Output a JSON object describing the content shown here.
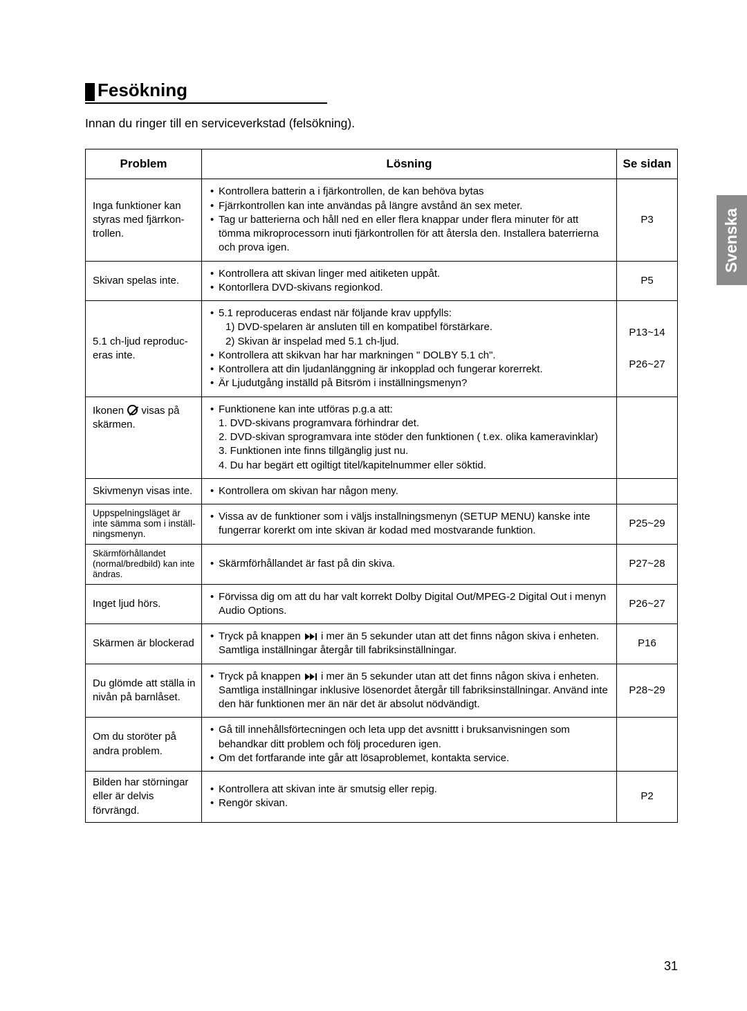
{
  "language_tab": "Svenska",
  "page_number": "31",
  "section_title": "Fesökning",
  "intro": "Innan du ringer till en serviceverkstad (felsökning).",
  "headers": {
    "problem": "Problem",
    "solution": "Lösning",
    "page": "Se sidan"
  },
  "rows": [
    {
      "problem": "Inga funktioner kan styras med fjärrkon-trollen.",
      "solutions": [
        "Kontrollera batterin a i fjärkontrollen, de kan behöva bytas",
        "Fjärrkontrollen kan inte användas på längre avstånd än sex meter.",
        "Tag ur batterierna och håll ned en eller flera knappar under flera minuter för att tömma mikroprocessorn inuti fjärkontrollen för att återsla den. Installera baterrierna och prova igen."
      ],
      "page": "P3"
    },
    {
      "problem": "Skivan spelas inte.",
      "solutions": [
        "Kontrollera att skivan linger med aitiketen uppåt.",
        "Kontorllera DVD-skivans regionkod."
      ],
      "page": "P5"
    },
    {
      "problem": "5.1 ch-ljud reproduc-eras inte.",
      "solutions": [
        "5.1 reproduceras endast när följande krav uppfylls:",
        "Kontrollera att skikvan har har markningen \" DOLBY 5.1 ch\".",
        "Kontrollera att din ljudanlänggning är inkopplad och fungerar korerrekt.",
        "Är Ljudutgång inställd på Bitsröm i inställningsmenyn?"
      ],
      "sub_after_first": [
        "1) DVD-spelaren är ansluten till en kompatibel förstärkare.",
        "2) Skivan är inspelad med 5.1 ch-ljud."
      ],
      "page_stack": [
        "P13~14",
        "P26~27"
      ]
    },
    {
      "problem": "Ikonen ⦸ visas på skärmen.",
      "solutions_raw": "Funktionene kan inte utföras p.g.a att:",
      "numbered": [
        "1. DVD-skivans programvara förhindrar det.",
        "2. DVD-skivan sprogramvara inte stöder den funktionen ( t.ex. olika kameravinklar)",
        "3. Funktionen inte finns tillgänglig just nu.",
        "4. Du har begärt ett ogiltigt titel/kapitelnummer eller söktid."
      ],
      "page": ""
    },
    {
      "problem": "Skivmenyn visas inte.",
      "solutions": [
        "Kontrollera om skivan har någon meny."
      ],
      "page": ""
    },
    {
      "problem": "Uppspelningsläget är inte sämma som i inställ-ningsmenyn.",
      "solutions": [
        "Vissa av de funktioner som i väljs installningsmenyn (SETUP MENU) kanske inte fungerrar korerkt om inte skivan är kodad med mostvarande funktion."
      ],
      "page": "P25~29"
    },
    {
      "problem": "Skärmförhållandet (normal/bredbild) kan inte ändras.",
      "solutions": [
        "Skärmförhållandet är fast på din skiva."
      ],
      "page": "P27~28"
    },
    {
      "problem": "Inget ljud hörs.",
      "solutions": [
        "Förvissa dig om att du har valt korrekt Dolby Digital Out/MPEG-2 Digital Out i menyn Audio Options."
      ],
      "page": "P26~27"
    },
    {
      "problem": "Skärmen är blockerad",
      "solutions_ff": [
        "Tryck på knappen ⏭ i mer än 5 sekunder utan att det finns någon skiva i enheten. Samtliga inställningar återgår till fabriksinställningar."
      ],
      "page": "P16"
    },
    {
      "problem": "Du glömde att ställa in nivån på barnlåset.",
      "solutions_ff": [
        "Tryck på knappen ⏭ i mer än 5 sekunder utan att det finns någon skiva i enheten. Samtliga inställningar inklusive lösenordet återgår till fabriksinställningar. Använd inte den här funktionen mer än när det är absolut nödvändigt."
      ],
      "page": "P28~29"
    },
    {
      "problem": "Om du storöter på andra problem.",
      "solutions": [
        "Gå till innehållsförtecningen och leta upp det avsnittt i bruksanvisningen som behandkar ditt problem och följ proceduren igen.",
        "Om det fortfarande inte går att lösaproblemet, kontakta service."
      ],
      "page": ""
    },
    {
      "problem": "Bilden har störningar eller är delvis förvrängd.",
      "solutions": [
        "Kontrollera att skivan inte är smutsig eller repig.",
        "Rengör skivan."
      ],
      "page": "P2"
    }
  ]
}
